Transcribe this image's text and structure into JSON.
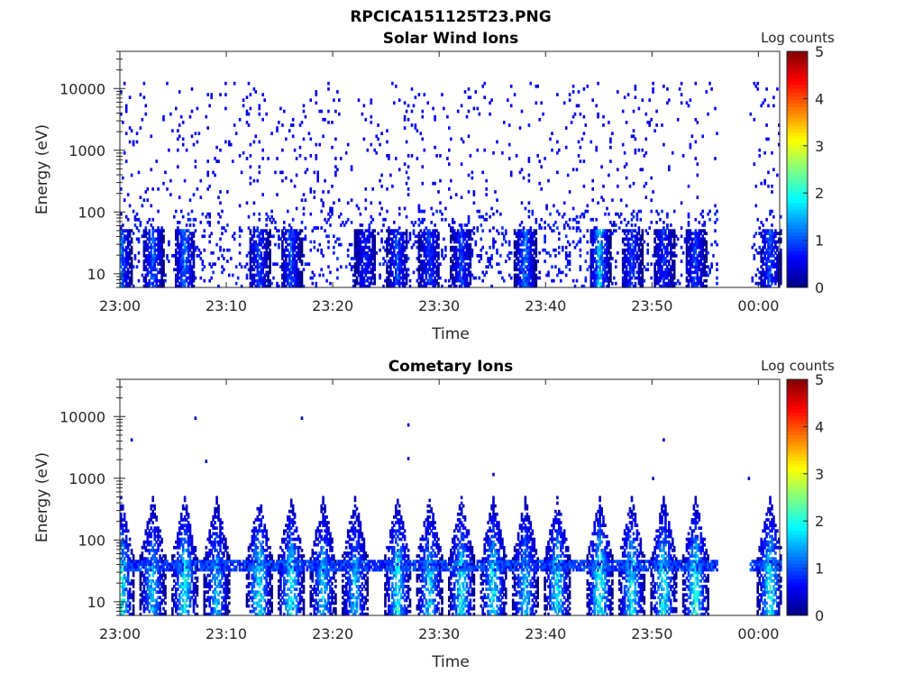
{
  "figure": {
    "supertitle": "RPCICA151125T23.PNG"
  },
  "colors": {
    "colormap": "jet",
    "axis": "#262626",
    "background": "#ffffff"
  },
  "chart_data": [
    {
      "type": "heatmap",
      "title": "Solar Wind Ions",
      "xlabel": "Time",
      "ylabel": "Energy (eV)",
      "y_scale": "log",
      "ylim": [
        6,
        40000
      ],
      "xlim": [
        "23:00",
        "00:02"
      ],
      "x_ticks": [
        "23:00",
        "23:10",
        "23:20",
        "23:30",
        "23:40",
        "23:50",
        "00:00"
      ],
      "y_ticks": [
        10,
        100,
        1000,
        10000
      ],
      "y_tick_labels": [
        "10",
        "100",
        "1000",
        "10000"
      ],
      "colorbar": {
        "label": "Log counts",
        "range": [
          0,
          5
        ],
        "ticks": [
          "0",
          "1",
          "2",
          "3",
          "4",
          "5"
        ]
      },
      "data_gaps": [
        [
          "23:56",
          "23:59"
        ]
      ],
      "pattern": {
        "sparse_background_level": 0.4,
        "sparse_top_energy": 12000,
        "low_energy_bands": [
          {
            "time": "23:00",
            "peak": 1.6
          },
          {
            "time": "23:03",
            "peak": 1.4
          },
          {
            "time": "23:06",
            "peak": 1.5
          },
          {
            "time": "23:13",
            "peak": 1.2
          },
          {
            "time": "23:16",
            "peak": 1.3
          },
          {
            "time": "23:23",
            "peak": 1.0
          },
          {
            "time": "23:26",
            "peak": 1.3
          },
          {
            "time": "23:29",
            "peak": 1.2
          },
          {
            "time": "23:32",
            "peak": 1.2
          },
          {
            "time": "23:38",
            "peak": 1.6
          },
          {
            "time": "23:45",
            "peak": 1.9
          },
          {
            "time": "23:48",
            "peak": 1.2
          },
          {
            "time": "23:51",
            "peak": 1.1
          },
          {
            "time": "23:54",
            "peak": 1.2
          },
          {
            "time": "00:01",
            "peak": 1.3
          }
        ]
      }
    },
    {
      "type": "heatmap",
      "title": "Cometary Ions",
      "xlabel": "Time",
      "ylabel": "Energy (eV)",
      "y_scale": "log",
      "ylim": [
        6,
        40000
      ],
      "xlim": [
        "23:00",
        "00:02"
      ],
      "x_ticks": [
        "23:00",
        "23:10",
        "23:20",
        "23:30",
        "23:40",
        "23:50",
        "00:00"
      ],
      "y_ticks": [
        10,
        100,
        1000,
        10000
      ],
      "y_tick_labels": [
        "10",
        "100",
        "1000",
        "10000"
      ],
      "colorbar": {
        "label": "Log counts",
        "range": [
          0,
          5
        ],
        "ticks": [
          "0",
          "1",
          "2",
          "3",
          "4",
          "5"
        ]
      },
      "data_gaps": [
        [
          "23:56",
          "23:59"
        ]
      ],
      "pattern": {
        "band_peak_energy": 30,
        "band_top_energy": 500,
        "bursts": [
          {
            "time": "23:00",
            "peak": 2.5
          },
          {
            "time": "23:03",
            "peak": 2.0
          },
          {
            "time": "23:06",
            "peak": 2.4
          },
          {
            "time": "23:09",
            "peak": 1.9
          },
          {
            "time": "23:13",
            "peak": 2.4
          },
          {
            "time": "23:16",
            "peak": 2.4
          },
          {
            "time": "23:19",
            "peak": 2.0
          },
          {
            "time": "23:22",
            "peak": 1.9
          },
          {
            "time": "23:26",
            "peak": 2.4
          },
          {
            "time": "23:29",
            "peak": 2.1
          },
          {
            "time": "23:32",
            "peak": 2.3
          },
          {
            "time": "23:35",
            "peak": 2.3
          },
          {
            "time": "23:38",
            "peak": 2.0
          },
          {
            "time": "23:41",
            "peak": 2.3
          },
          {
            "time": "23:45",
            "peak": 2.6
          },
          {
            "time": "23:48",
            "peak": 2.3
          },
          {
            "time": "23:51",
            "peak": 2.4
          },
          {
            "time": "23:54",
            "peak": 2.5
          },
          {
            "time": "00:01",
            "peak": 2.4
          }
        ],
        "isolated_points": [
          {
            "time": "23:01",
            "energy": 4000,
            "level": 0.3
          },
          {
            "time": "23:07",
            "energy": 9000,
            "level": 0.3
          },
          {
            "time": "23:08",
            "energy": 1800,
            "level": 0.3
          },
          {
            "time": "23:17",
            "energy": 9000,
            "level": 0.3
          },
          {
            "time": "23:27",
            "energy": 7000,
            "level": 0.3
          },
          {
            "time": "23:27",
            "energy": 2000,
            "level": 0.3
          },
          {
            "time": "23:35",
            "energy": 1100,
            "level": 0.3
          },
          {
            "time": "23:51",
            "energy": 4000,
            "level": 0.3
          },
          {
            "time": "23:50",
            "energy": 950,
            "level": 0.3
          },
          {
            "time": "23:59",
            "energy": 950,
            "level": 0.3
          }
        ]
      }
    }
  ]
}
